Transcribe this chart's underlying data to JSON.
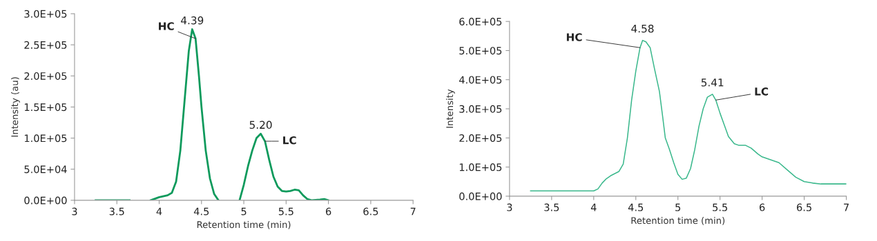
{
  "chart_data": [
    {
      "type": "line",
      "xlabel": "Retention time (min)",
      "ylabel": "Intensity (au)",
      "xlim": [
        3,
        7
      ],
      "xticks": [
        3,
        3.5,
        4,
        4.5,
        5,
        5.5,
        6,
        6.5,
        7
      ],
      "ylim": [
        0,
        300000
      ],
      "yticks": [
        {
          "value": 0,
          "label": "0.0E+00"
        },
        {
          "value": 50000,
          "label": "5.0E+04"
        },
        {
          "value": 100000,
          "label": "1.0E+05"
        },
        {
          "value": 150000,
          "label": "1.5E+05"
        },
        {
          "value": 200000,
          "label": "2.0E+05"
        },
        {
          "value": 250000,
          "label": "2.5E+05"
        },
        {
          "value": 300000,
          "label": "3.0E+05"
        }
      ],
      "grid": false,
      "legend": false,
      "marker": "none",
      "line_style": "solid",
      "x": [
        3.25,
        3.5,
        3.65,
        3.78,
        3.9,
        4.0,
        4.1,
        4.15,
        4.2,
        4.25,
        4.3,
        4.35,
        4.39,
        4.43,
        4.47,
        4.5,
        4.55,
        4.6,
        4.65,
        4.7,
        4.82,
        4.95,
        5.0,
        5.05,
        5.1,
        5.15,
        5.2,
        5.25,
        5.3,
        5.35,
        5.4,
        5.45,
        5.5,
        5.55,
        5.6,
        5.65,
        5.7,
        5.75,
        5.8,
        5.9,
        5.95,
        6.0
      ],
      "series": [
        {
          "color": "#0e9a5c",
          "values": [
            0,
            0,
            0,
            null,
            0,
            5000,
            8000,
            12000,
            30000,
            80000,
            160000,
            240000,
            275000,
            260000,
            200000,
            150000,
            80000,
            35000,
            10000,
            0,
            null,
            0,
            25000,
            55000,
            80000,
            100000,
            107000,
            95000,
            65000,
            38000,
            22000,
            15000,
            14000,
            15000,
            17000,
            16000,
            8000,
            2000,
            0,
            1000,
            2000,
            0
          ]
        }
      ],
      "annotations": [
        {
          "text": "4.39",
          "x": 4.39,
          "y": 275000
        },
        {
          "text": "HC",
          "x": 4.43,
          "y": 260000
        },
        {
          "text": "5.20",
          "x": 5.2,
          "y": 107000
        },
        {
          "text": "LC",
          "x": 5.25,
          "y": 95000
        }
      ]
    },
    {
      "type": "line",
      "xlabel": "Retention time (min)",
      "ylabel": "Intensity",
      "xlim": [
        3,
        7
      ],
      "xticks": [
        3,
        3.5,
        4,
        4.5,
        5,
        5.5,
        6,
        6.5,
        7
      ],
      "ylim": [
        0,
        600000
      ],
      "yticks": [
        {
          "value": 0,
          "label": "0.0E+00"
        },
        {
          "value": 100000,
          "label": "1.0E+05"
        },
        {
          "value": 200000,
          "label": "2.0E+05"
        },
        {
          "value": 300000,
          "label": "3.0E+05"
        },
        {
          "value": 400000,
          "label": "4.0E+05"
        },
        {
          "value": 500000,
          "label": "5.0E+05"
        },
        {
          "value": 600000,
          "label": "6.0E+05"
        }
      ],
      "grid": false,
      "legend": false,
      "marker": "none",
      "line_style": "solid",
      "x": [
        3.25,
        4.0,
        4.05,
        4.1,
        4.15,
        4.2,
        4.3,
        4.35,
        4.4,
        4.45,
        4.5,
        4.55,
        4.58,
        4.62,
        4.67,
        4.72,
        4.78,
        4.82,
        4.85,
        4.9,
        4.95,
        5.0,
        5.05,
        5.1,
        5.15,
        5.2,
        5.25,
        5.3,
        5.35,
        5.41,
        5.45,
        5.5,
        5.55,
        5.6,
        5.67,
        5.72,
        5.8,
        5.87,
        5.95,
        6.0,
        6.1,
        6.2,
        6.3,
        6.4,
        6.5,
        6.6,
        6.7,
        7.0
      ],
      "series": [
        {
          "color": "#3ab88c",
          "values": [
            18000,
            18000,
            25000,
            45000,
            60000,
            70000,
            85000,
            110000,
            200000,
            330000,
            430000,
            510000,
            535000,
            530000,
            510000,
            440000,
            360000,
            270000,
            200000,
            160000,
            115000,
            75000,
            58000,
            62000,
            95000,
            160000,
            240000,
            300000,
            340000,
            350000,
            330000,
            285000,
            245000,
            205000,
            180000,
            175000,
            175000,
            165000,
            145000,
            135000,
            125000,
            115000,
            90000,
            65000,
            50000,
            45000,
            42000,
            42000
          ]
        }
      ],
      "annotations": [
        {
          "text": "4.58",
          "x": 4.58,
          "y": 535000
        },
        {
          "text": "HC",
          "x": 4.55,
          "y": 510000
        },
        {
          "text": "5.41",
          "x": 5.41,
          "y": 350000
        },
        {
          "text": "LC",
          "x": 5.45,
          "y": 330000
        }
      ]
    }
  ]
}
